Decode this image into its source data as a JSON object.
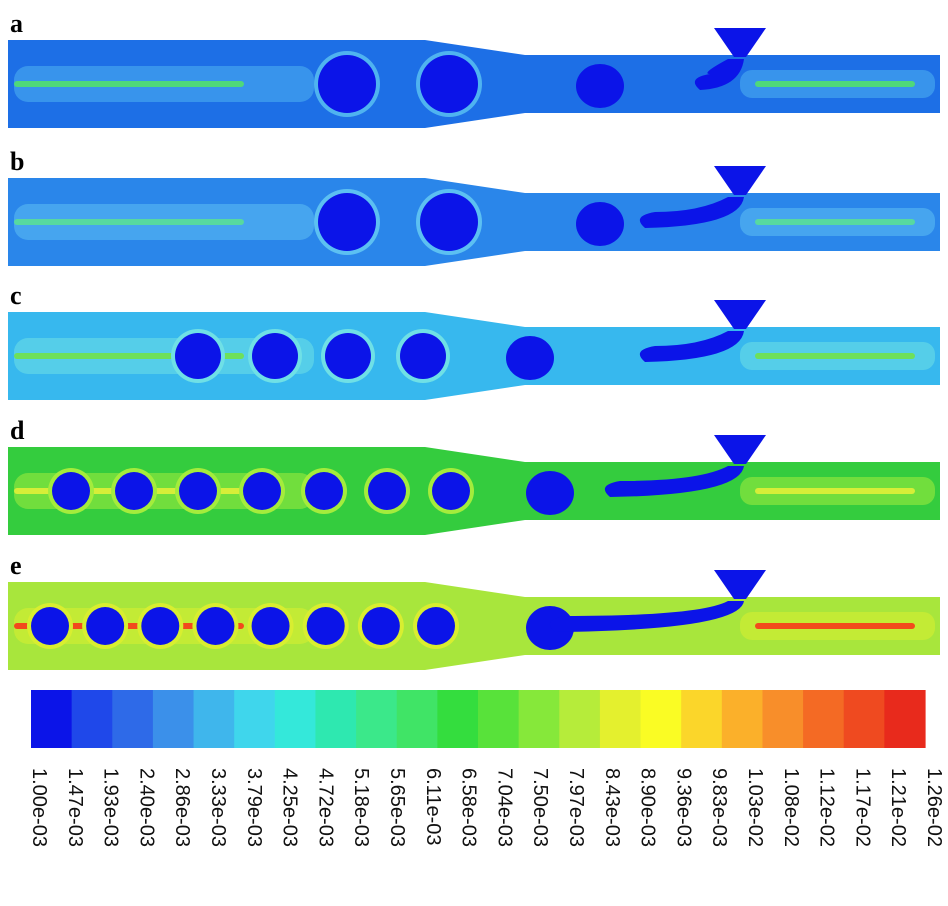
{
  "panels": [
    {
      "letter": "a",
      "background": "#1d6fe6",
      "streak": "#4fd87a",
      "halo": "#4fb3f0",
      "upstream_drops": 2,
      "downstream_drops": 1,
      "tail": "short"
    },
    {
      "letter": "b",
      "background": "#2a86ea",
      "streak": "#57d9a0",
      "halo": "#5cc0f2",
      "upstream_drops": 2,
      "downstream_drops": 1,
      "tail": "medium"
    },
    {
      "letter": "c",
      "background": "#37b8ee",
      "streak": "#6ee05a",
      "halo": "#6fe0e6",
      "upstream_drops": 4,
      "downstream_drops": 1,
      "tail": "medium"
    },
    {
      "letter": "d",
      "background": "#34cc3e",
      "streak": "#d6ee38",
      "halo": "#a4ec3c",
      "upstream_drops": 7,
      "downstream_drops": 1,
      "tail": "long"
    },
    {
      "letter": "e",
      "background": "#a8e63c",
      "streak": "#f24a1c",
      "halo": "#d8ee30",
      "upstream_drops": 8,
      "downstream_drops": 1,
      "tail": "very-long"
    }
  ],
  "droplet_color": "#0b14e8",
  "colorbar": {
    "colors": [
      "#0b14e8",
      "#1f48ea",
      "#2e6ae8",
      "#3b90ea",
      "#3fb6ec",
      "#3fd6ec",
      "#34e8da",
      "#2ee8b0",
      "#3be88a",
      "#40e466",
      "#34dd3e",
      "#58e23a",
      "#86e83a",
      "#b6ec3a",
      "#e4f02e",
      "#fafc24",
      "#fbd62a",
      "#fbb02a",
      "#f88e2a",
      "#f46a24",
      "#ef4a20",
      "#e82a1c"
    ],
    "labels": [
      "1.00e-03",
      "1.47e-03",
      "1.93e-03",
      "2.40e-03",
      "2.86e-03",
      "3.33e-03",
      "3.79e-03",
      "4.25e-03",
      "4.72e-03",
      "5.18e-03",
      "5.65e-03",
      "6.11e-03",
      "6.58e-03",
      "7.04e-03",
      "7.50e-03",
      "7.97e-03",
      "8.43e-03",
      "8.90e-03",
      "9.36e-03",
      "9.83e-03",
      "1.03e-02",
      "1.08e-02",
      "1.12e-02",
      "1.17e-02",
      "1.21e-02",
      "1.26e-02"
    ]
  }
}
